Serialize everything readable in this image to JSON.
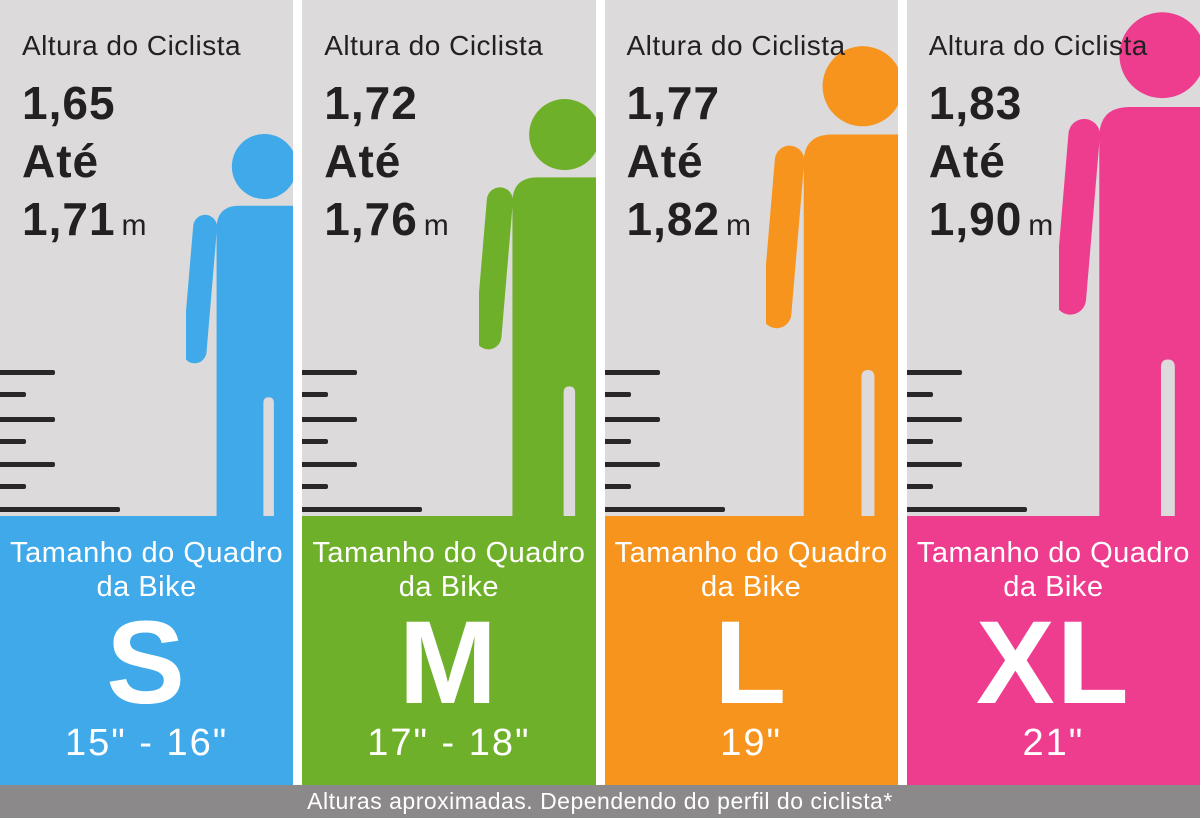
{
  "columns": [
    {
      "header": "Altura do Ciclista",
      "height_from": "1,65",
      "connector": "Até",
      "height_to": "1,71",
      "unit": "m",
      "color": "#3FA9EA",
      "frame_label_line1": "Tamanho do Quadro",
      "frame_label_line2": "da Bike",
      "size": "S",
      "inches": "15\" - 16\""
    },
    {
      "header": "Altura do Ciclista",
      "height_from": "1,72",
      "connector": "Até",
      "height_to": "1,76",
      "unit": "m",
      "color": "#6FB02A",
      "frame_label_line1": "Tamanho do Quadro",
      "frame_label_line2": "da Bike",
      "size": "M",
      "inches": "17\" - 18\""
    },
    {
      "header": "Altura do Ciclista",
      "height_from": "1,77",
      "connector": "Até",
      "height_to": "1,82",
      "unit": "m",
      "color": "#F7941E",
      "frame_label_line1": "Tamanho do Quadro",
      "frame_label_line2": "da Bike",
      "size": "L",
      "inches": "19\""
    },
    {
      "header": "Altura do Ciclista",
      "height_from": "1,83",
      "connector": "Até",
      "height_to": "1,90",
      "unit": "m",
      "color": "#EE3D8F",
      "frame_label_line1": "Tamanho do Quadro",
      "frame_label_line2": "da Bike",
      "size": "XL",
      "inches": "21\""
    }
  ],
  "footer": {
    "note": "Alturas aproximadas. Dependendo do perfil do ciclista*"
  }
}
